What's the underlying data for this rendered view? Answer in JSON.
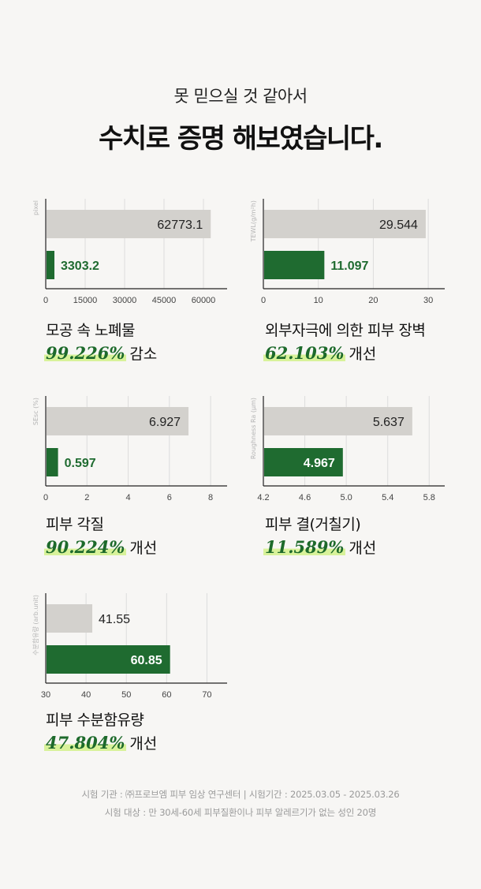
{
  "header": {
    "subtitle": "못 믿으실 것 같아서",
    "title": "수치로 증명 해보였습니다."
  },
  "colors": {
    "before_bar": "#d3d1cd",
    "after_bar": "#1f6b30",
    "highlight": "#d8f29a",
    "grid": "#dcdcdc"
  },
  "chart_data": [
    {
      "type": "bar",
      "orientation": "horizontal",
      "ylabel": "pixel",
      "values": [
        62773.1,
        3303.2
      ],
      "value_labels": [
        "62773.1",
        "3303.2"
      ],
      "xlim": [
        0,
        69000
      ],
      "ticks": [
        0,
        15000,
        30000,
        45000,
        60000
      ],
      "tick_labels": [
        "0",
        "15000",
        "30000",
        "45000",
        "60000"
      ],
      "name": "모공 속 노폐물",
      "percent": "99.226%",
      "change": "감소"
    },
    {
      "type": "bar",
      "orientation": "horizontal",
      "ylabel": "TEWL(g/m²h)",
      "values": [
        29.544,
        11.097
      ],
      "value_labels": [
        "29.544",
        "11.097"
      ],
      "xlim": [
        0,
        33
      ],
      "ticks": [
        0,
        10,
        20,
        30
      ],
      "tick_labels": [
        "0",
        "10",
        "20",
        "30"
      ],
      "name": "외부자극에 의한 피부 장벽",
      "percent": "62.103%",
      "change": "개선"
    },
    {
      "type": "bar",
      "orientation": "horizontal",
      "ylabel": "SEsc (%)",
      "values": [
        6.927,
        0.597
      ],
      "value_labels": [
        "6.927",
        "0.597"
      ],
      "xlim": [
        0,
        8.8
      ],
      "ticks": [
        0,
        2,
        4,
        6,
        8
      ],
      "tick_labels": [
        "0",
        "2",
        "4",
        "6",
        "8"
      ],
      "name": "피부 각질",
      "percent": "90.224%",
      "change": "개선"
    },
    {
      "type": "bar",
      "orientation": "horizontal",
      "ylabel": "Roughness Ra (μm)",
      "values": [
        5.637,
        4.967
      ],
      "value_labels": [
        "5.637",
        "4.967"
      ],
      "xlim": [
        4.2,
        5.95
      ],
      "ticks": [
        4.2,
        4.6,
        5.0,
        5.4,
        5.8
      ],
      "tick_labels": [
        "4.2",
        "4.6",
        "5.0",
        "5.4",
        "5.8"
      ],
      "name": "피부 결(거칠기)",
      "percent": "11.589%",
      "change": "개선"
    },
    {
      "type": "bar",
      "orientation": "horizontal",
      "ylabel": "수분함유량 (arb.unit)",
      "values": [
        41.55,
        60.85
      ],
      "value_labels": [
        "41.55",
        "60.85"
      ],
      "xlim": [
        30,
        75
      ],
      "ticks": [
        30,
        40,
        50,
        60,
        70
      ],
      "tick_labels": [
        "30",
        "40",
        "50",
        "60",
        "70"
      ],
      "name": "피부 수분함유량",
      "percent": "47.804%",
      "change": "개선"
    }
  ],
  "footer": {
    "line1": "시험 기관 : ㈜프로브엠 피부 임상 연구센터  |  시험기간 : 2025.03.05 - 2025.03.26",
    "line2": "시험 대상 : 만 30세-60세 피부질환이나 피부 알레르기가 없는 성인 20명"
  }
}
